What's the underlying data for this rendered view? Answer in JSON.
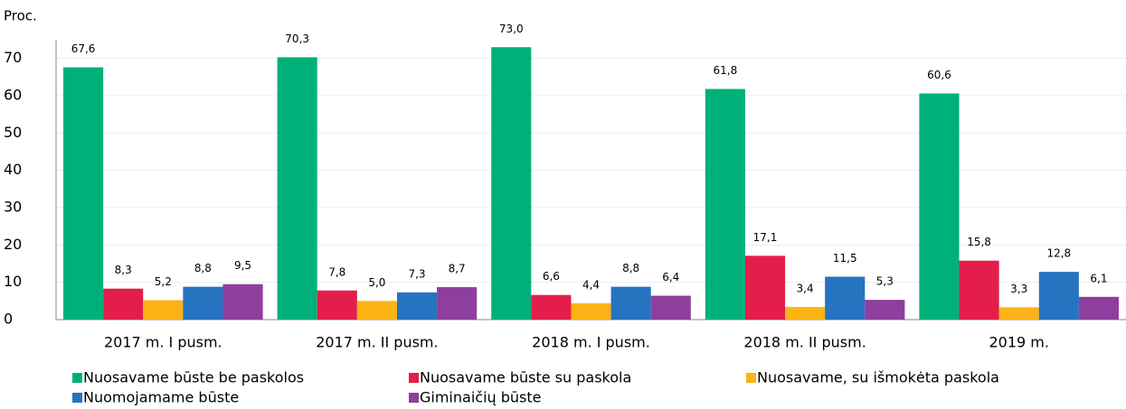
{
  "chart_data": {
    "type": "bar",
    "ylabel": "Proc.",
    "categories": [
      "2017 m. I pusm.",
      "2017 m. II pusm.",
      "2018 m. I pusm.",
      "2018 m. II pusm.",
      "2019 m."
    ],
    "series": [
      {
        "name": "Nuosavame būste be paskolos",
        "color": "#00b07a",
        "values": [
          67.6,
          70.3,
          73.0,
          61.8,
          60.6
        ],
        "value_labels": [
          "67,6",
          "70,3",
          "73,0",
          "61,8",
          "60,6"
        ]
      },
      {
        "name": "Nuosavame būste su paskola",
        "color": "#e31e4a",
        "values": [
          8.3,
          7.8,
          6.6,
          17.1,
          15.8
        ],
        "value_labels": [
          "8,3",
          "7,8",
          "6,6",
          "17,1",
          "15,8"
        ]
      },
      {
        "name": "Nuosavame, su išmokėta paskola",
        "color": "#fbb316",
        "values": [
          5.2,
          5.0,
          4.4,
          3.4,
          3.3
        ],
        "value_labels": [
          "5,2",
          "5,0",
          "4,4",
          "3,4",
          "3,3"
        ]
      },
      {
        "name": "Nuomojamame būste",
        "color": "#2673c0",
        "values": [
          8.8,
          7.3,
          8.8,
          11.5,
          12.8
        ],
        "value_labels": [
          "8,8",
          "7,3",
          "8,8",
          "11,5",
          "12,8"
        ]
      },
      {
        "name": "Giminaičių būste",
        "color": "#8e3f9d",
        "values": [
          9.5,
          8.7,
          6.4,
          5.3,
          6.1
        ],
        "value_labels": [
          "9,5",
          "8,7",
          "6,4",
          "5,3",
          "6,1"
        ]
      }
    ],
    "ylim": [
      0,
      75
    ],
    "yticks": [
      0,
      10,
      20,
      30,
      40,
      50,
      60,
      70
    ],
    "grid": true
  }
}
